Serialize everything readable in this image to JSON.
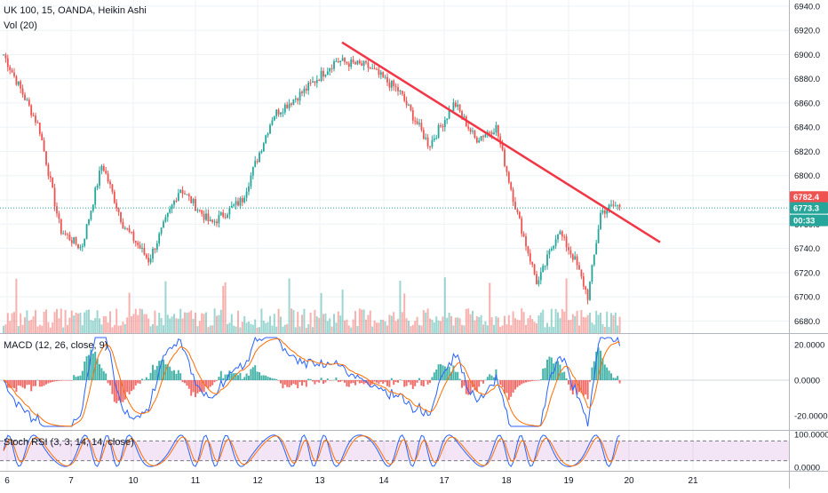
{
  "header": {
    "symbol_line": "UK 100, 15, OANDA, Heikin Ashi",
    "volume_label": "Vol (20)"
  },
  "price_axis": {
    "ticks": [
      "6940.0",
      "6920.0",
      "6900.0",
      "6880.0",
      "6860.0",
      "6840.0",
      "6820.0",
      "6800.0",
      "6780.0",
      "6760.0",
      "6740.0",
      "6720.0",
      "6700.0",
      "6680.0"
    ],
    "markers": [
      {
        "label": "6782.4",
        "color": "#ef5350"
      },
      {
        "label": "6773.3",
        "color": "#26a69a"
      },
      {
        "label": "00:33",
        "color": "#26a69a"
      }
    ]
  },
  "macd": {
    "label": "MACD (12, 26, close, 9)",
    "ticks": [
      "20.0000",
      "0.0000",
      "-20.0000"
    ]
  },
  "stoch": {
    "label": "Stoch RSI (3, 3, 14, 14, close)",
    "ticks": [
      "100.0000",
      "0.0000"
    ]
  },
  "time_axis": {
    "labels": [
      "6",
      "7",
      "10",
      "11",
      "12",
      "13",
      "14",
      "17",
      "18",
      "19",
      "20",
      "21"
    ]
  },
  "chart_data": {
    "type": "candlestick",
    "instrument": "UK 100",
    "timeframe": "15",
    "source": "OANDA",
    "style": "Heikin Ashi",
    "ylim": [
      6670,
      6945
    ],
    "x_labels": [
      "6",
      "7",
      "10",
      "11",
      "12",
      "13",
      "14",
      "17",
      "18",
      "19",
      "20",
      "21"
    ],
    "last_price": 6782.4,
    "current_price": 6773.3,
    "price_key_points": [
      {
        "day": "6",
        "price": 6900
      },
      {
        "day": "6",
        "price": 6840
      },
      {
        "day": "6",
        "price": 6755
      },
      {
        "day": "7",
        "price": 6740
      },
      {
        "day": "7",
        "price": 6810
      },
      {
        "day": "7",
        "price": 6760
      },
      {
        "day": "10",
        "price": 6730
      },
      {
        "day": "10",
        "price": 6790
      },
      {
        "day": "11",
        "price": 6760
      },
      {
        "day": "11",
        "price": 6780
      },
      {
        "day": "12",
        "price": 6850
      },
      {
        "day": "12",
        "price": 6870
      },
      {
        "day": "13",
        "price": 6895
      },
      {
        "day": "13",
        "price": 6890
      },
      {
        "day": "14",
        "price": 6870
      },
      {
        "day": "14",
        "price": 6825
      },
      {
        "day": "17",
        "price": 6860
      },
      {
        "day": "17",
        "price": 6830
      },
      {
        "day": "17",
        "price": 6840
      },
      {
        "day": "18",
        "price": 6770
      },
      {
        "day": "18",
        "price": 6710
      },
      {
        "day": "18",
        "price": 6755
      },
      {
        "day": "19",
        "price": 6730
      },
      {
        "day": "19",
        "price": 6700
      },
      {
        "day": "19",
        "price": 6770
      },
      {
        "day": "19",
        "price": 6775
      }
    ],
    "trendline": {
      "color": "#f23645",
      "points": [
        {
          "day": "13",
          "price": 6910
        },
        {
          "day": "20",
          "price": 6745
        }
      ]
    },
    "macd_range": [
      -28,
      26
    ],
    "stoch_range": [
      0,
      100
    ]
  }
}
